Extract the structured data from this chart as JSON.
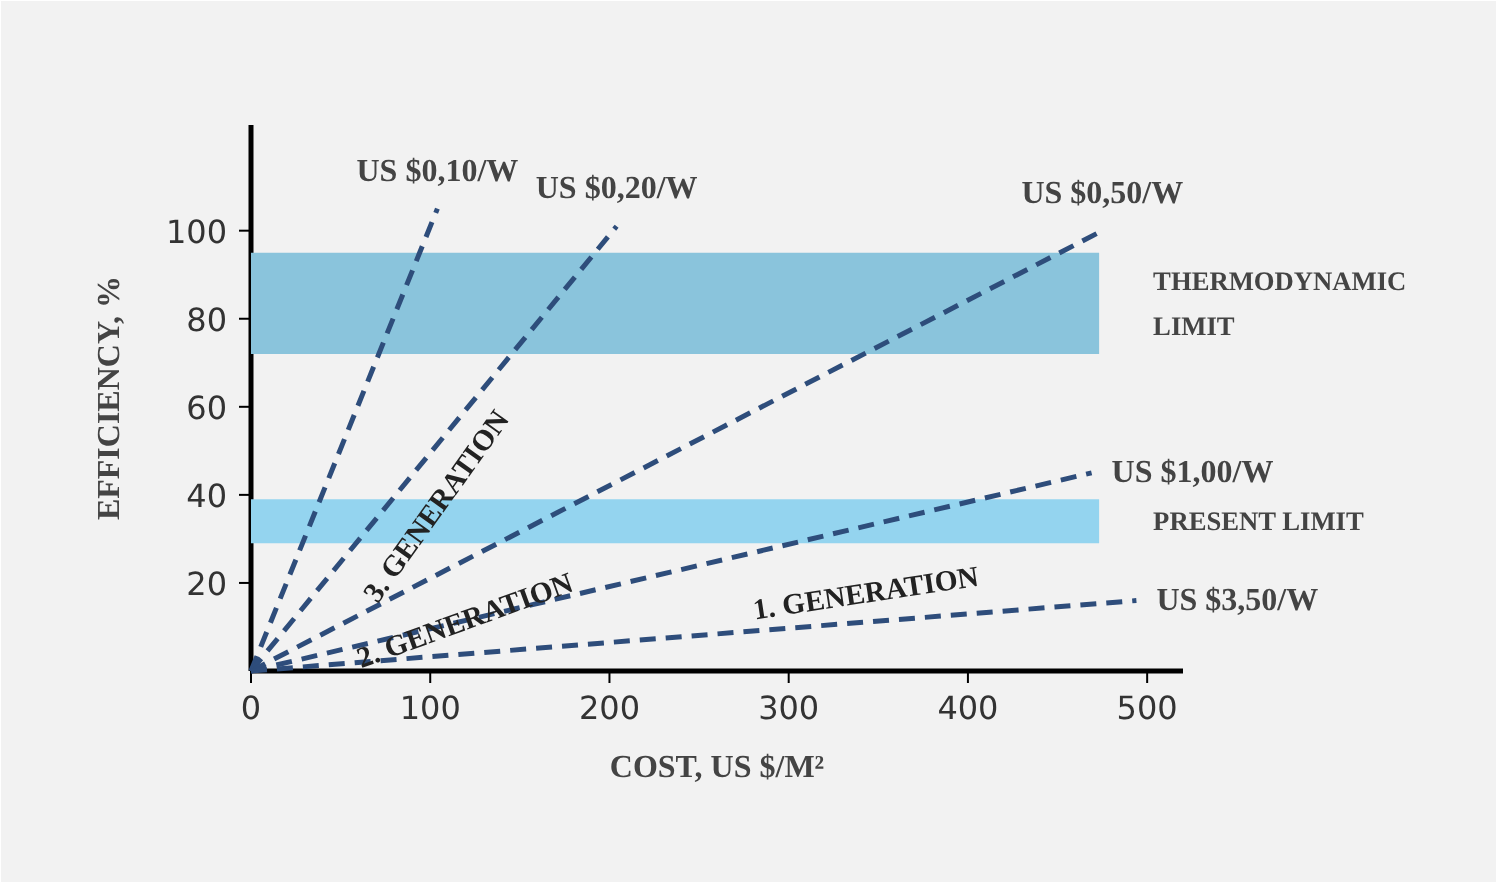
{
  "chart_data": {
    "type": "line",
    "xlabel": "COST, US $/M²",
    "ylabel": "EFFICIENCY, %",
    "xlim": [
      0,
      520
    ],
    "ylim": [
      0,
      124
    ],
    "xticks": [
      0,
      100,
      200,
      300,
      400,
      500
    ],
    "yticks": [
      20,
      40,
      60,
      80,
      100
    ],
    "grid": false,
    "legend": false,
    "marker": "none",
    "line_style": "dashed",
    "series": [
      {
        "name": "US $0,10/W",
        "color": "#2e4d7b",
        "x": [
          0,
          104
        ],
        "values": [
          0,
          105
        ]
      },
      {
        "name": "US $0,20/W",
        "color": "#2e4d7b",
        "x": [
          0,
          204
        ],
        "values": [
          0,
          101
        ]
      },
      {
        "name": "US $0,50/W",
        "color": "#2e4d7b",
        "x": [
          0,
          475
        ],
        "values": [
          0,
          100
        ]
      },
      {
        "name": "US $1,00/W",
        "color": "#2e4d7b",
        "x": [
          0,
          469
        ],
        "values": [
          0,
          45
        ]
      },
      {
        "name": "US $3,50/W",
        "color": "#2e4d7b",
        "x": [
          0,
          494
        ],
        "values": [
          0,
          16
        ]
      }
    ],
    "bands": [
      {
        "axis": "y",
        "from": 72,
        "to": 95,
        "label": "THERMODYNAMIC\nLIMIT",
        "color": "#8ac4dc"
      },
      {
        "axis": "y",
        "from": 29,
        "to": 39,
        "label": "PRESENT LIMIT",
        "color": "#94d4ef"
      }
    ],
    "annotations": [
      "3. GENERATION",
      "2. GENERATION",
      "1. GENERATION"
    ]
  }
}
